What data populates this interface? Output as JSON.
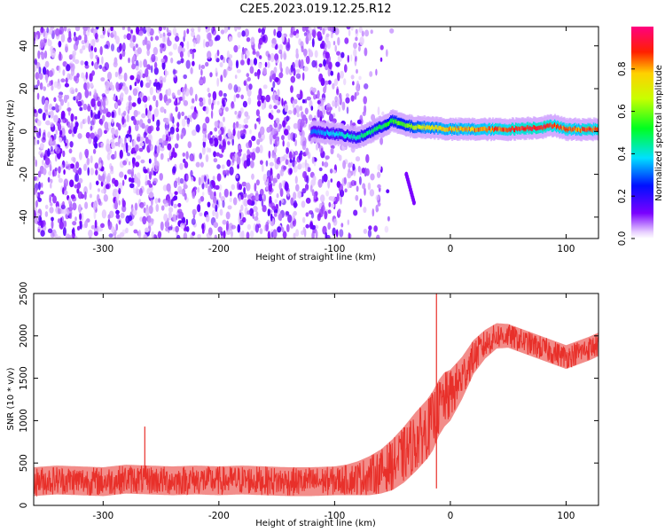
{
  "title": "C2E5.2023.019.12.25.R12",
  "chart_data": [
    {
      "type": "heatmap",
      "xlabel": "Height of straight line (km)",
      "ylabel": "Frequency (Hz)",
      "xlim": [
        -360,
        128
      ],
      "ylim": [
        -50,
        49
      ],
      "xticks": [
        -300,
        -200,
        -100,
        0,
        100
      ],
      "yticks": [
        -40,
        -20,
        0,
        20,
        40
      ],
      "colorbar": {
        "label": "Normalized spectral amplitude",
        "range": [
          0,
          1
        ],
        "ticks": [
          0.0,
          0.2,
          0.4,
          0.6,
          0.8
        ],
        "colormap": "rainbow (white-violet-blue-cyan-green-yellow-red-magenta)"
      },
      "signal_band": {
        "description": "broadband noise for height < -100 km; narrow band near 0-2 Hz above -100 km",
        "x": [
          -120,
          -100,
          -80,
          -60,
          -50,
          -40,
          -30,
          -20,
          0,
          50,
          80,
          90,
          100,
          128
        ],
        "center_hz": [
          0,
          -1,
          -3,
          2,
          5,
          3,
          2,
          2,
          1,
          1,
          2,
          3,
          1,
          1
        ],
        "peak_amplitude": [
          0.3,
          0.4,
          0.45,
          0.5,
          0.55,
          0.6,
          0.65,
          0.75,
          0.8,
          0.9,
          0.95,
          0.9,
          0.85,
          0.9
        ]
      }
    },
    {
      "type": "line",
      "xlabel": "Height of straight line (km)",
      "ylabel": "SNR (10 * v/v)",
      "xlim": [
        -360,
        128
      ],
      "ylim": [
        0,
        2500
      ],
      "xticks": [
        -300,
        -200,
        -100,
        0,
        100
      ],
      "yticks": [
        0,
        500,
        1000,
        1500,
        2000,
        2500
      ],
      "color": "#e8302a",
      "series": [
        {
          "x": [
            -360,
            -340,
            -320,
            -300,
            -280,
            -260,
            -240,
            -220,
            -200,
            -180,
            -160,
            -140,
            -120,
            -100,
            -90,
            -80,
            -70,
            -60,
            -50,
            -40,
            -30,
            -20,
            -15,
            -10,
            -5,
            0,
            10,
            20,
            30,
            40,
            50,
            60,
            70,
            80,
            90,
            100,
            110,
            120,
            128
          ],
          "values": [
            280,
            300,
            290,
            280,
            310,
            300,
            290,
            300,
            290,
            300,
            290,
            280,
            280,
            290,
            300,
            320,
            350,
            400,
            480,
            600,
            750,
            900,
            1000,
            1150,
            1250,
            1300,
            1500,
            1750,
            1900,
            2000,
            2000,
            1950,
            1900,
            1850,
            1800,
            1750,
            1800,
            1850,
            1900
          ],
          "spread": [
            170,
            170,
            170,
            170,
            170,
            170,
            170,
            170,
            170,
            170,
            170,
            170,
            170,
            170,
            180,
            200,
            230,
            260,
            300,
            330,
            350,
            350,
            350,
            330,
            320,
            300,
            250,
            200,
            170,
            150,
            140,
            140,
            140,
            140,
            140,
            140,
            140,
            140,
            140
          ]
        }
      ],
      "annotations": [
        {
          "x": -12,
          "y": 2500,
          "text": "peak spike"
        },
        {
          "x": -264,
          "y": 930,
          "text": "spike"
        }
      ]
    }
  ]
}
